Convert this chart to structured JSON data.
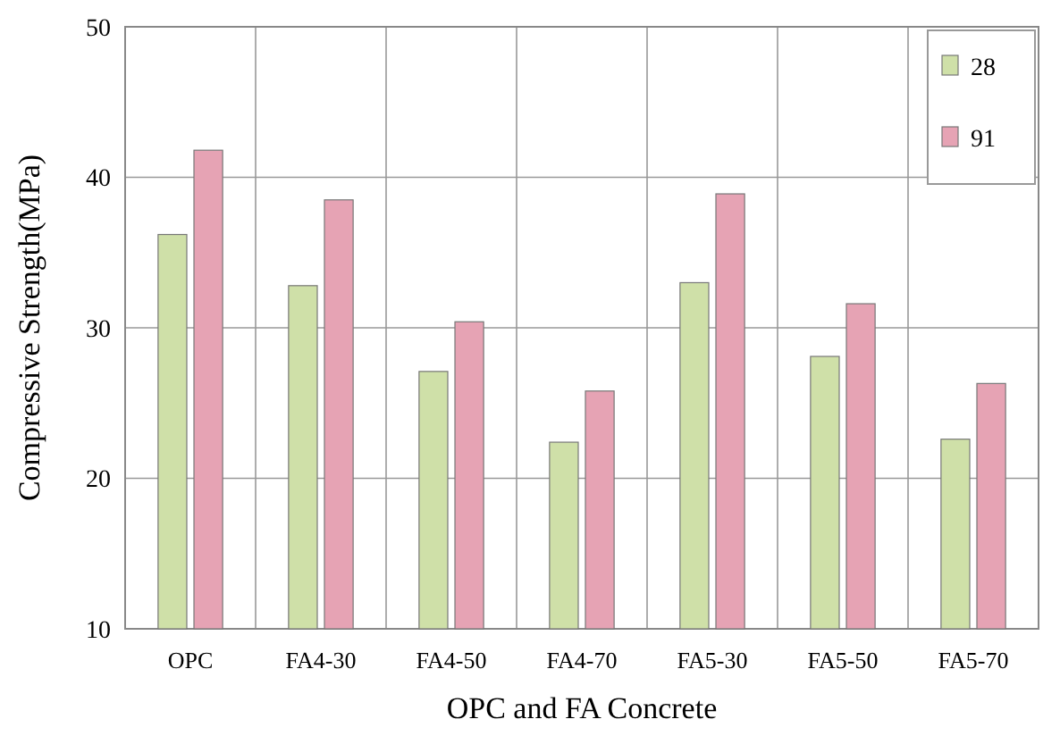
{
  "chart_data": {
    "type": "bar",
    "xlabel": "OPC and FA Concrete",
    "ylabel": "Compressive Strength(MPa)",
    "categories": [
      "OPC",
      "FA4-30",
      "FA4-50",
      "FA4-70",
      "FA5-30",
      "FA5-50",
      "FA5-70"
    ],
    "series": [
      {
        "name": "28",
        "color": "#cfe0a8",
        "values": [
          36.2,
          32.8,
          27.1,
          22.4,
          33.0,
          28.1,
          22.6
        ]
      },
      {
        "name": "91",
        "color": "#e6a3b4",
        "values": [
          41.8,
          38.5,
          30.4,
          25.8,
          38.9,
          31.6,
          26.3
        ]
      }
    ],
    "ylim": [
      10,
      50
    ],
    "yticks": [
      10,
      20,
      30,
      40,
      50
    ],
    "grid": true,
    "legend": "top right"
  }
}
